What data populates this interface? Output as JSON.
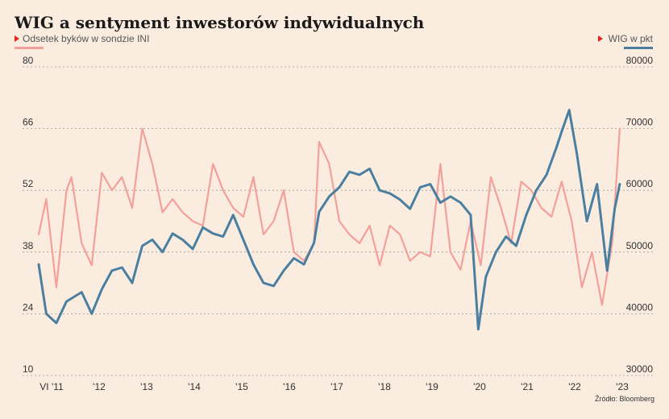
{
  "chart_data": {
    "type": "line",
    "title": "WIG a sentyment inwestorów indywidualnych",
    "legend_placement": "top-left and top-right",
    "grid": true,
    "x_ticks": [
      "VI '11",
      "'12",
      "'13",
      "'14",
      "'15",
      "'16",
      "'17",
      "'18",
      "'19",
      "'20",
      "'21",
      "'22",
      "'23"
    ],
    "x_range": [
      2011.45,
      2023.0
    ],
    "y_left": {
      "range": [
        10,
        80
      ],
      "ticks": [
        "80",
        "66",
        "52",
        "38",
        "24",
        "10"
      ]
    },
    "y_right": {
      "range": [
        30000,
        80000
      ],
      "ticks": [
        "80000",
        "70000",
        "60000",
        "50000",
        "40000",
        "30000"
      ]
    },
    "series": [
      {
        "name": "Odsetek byków w sondzie INI",
        "axis": "left",
        "color": "#f4a09a",
        "x": [
          2011.45,
          2011.6,
          2011.8,
          2012.0,
          2012.1,
          2012.3,
          2012.5,
          2012.7,
          2012.9,
          2013.1,
          2013.3,
          2013.5,
          2013.7,
          2013.9,
          2014.1,
          2014.3,
          2014.5,
          2014.7,
          2014.9,
          2015.1,
          2015.3,
          2015.5,
          2015.7,
          2015.9,
          2016.1,
          2016.3,
          2016.5,
          2016.7,
          2016.9,
          2017.0,
          2017.2,
          2017.4,
          2017.6,
          2017.8,
          2018.0,
          2018.2,
          2018.4,
          2018.6,
          2018.8,
          2019.0,
          2019.2,
          2019.4,
          2019.6,
          2019.8,
          2020.0,
          2020.2,
          2020.4,
          2020.6,
          2020.8,
          2021.0,
          2021.2,
          2021.4,
          2021.6,
          2021.8,
          2022.0,
          2022.2,
          2022.4,
          2022.6,
          2022.8,
          2022.95
        ],
        "values": [
          42,
          50,
          30,
          52,
          55,
          40,
          35,
          56,
          52,
          55,
          48,
          66,
          58,
          47,
          50,
          47,
          45,
          44,
          58,
          52,
          48,
          46,
          55,
          42,
          45,
          52,
          38,
          36,
          40,
          63,
          58,
          45,
          42,
          40,
          44,
          35,
          44,
          42,
          36,
          38,
          37,
          58,
          38,
          34,
          45,
          35,
          55,
          48,
          40,
          54,
          52,
          48,
          46,
          54,
          45,
          30,
          38,
          26,
          40,
          66
        ]
      },
      {
        "name": "WIG w pkt",
        "axis": "right",
        "color": "#4a7fa0",
        "x": [
          2011.45,
          2011.6,
          2011.8,
          2012.0,
          2012.3,
          2012.5,
          2012.7,
          2012.9,
          2013.1,
          2013.3,
          2013.5,
          2013.7,
          2013.9,
          2014.1,
          2014.3,
          2014.5,
          2014.7,
          2014.9,
          2015.1,
          2015.3,
          2015.5,
          2015.7,
          2015.9,
          2016.1,
          2016.3,
          2016.5,
          2016.7,
          2016.9,
          2017.0,
          2017.2,
          2017.4,
          2017.6,
          2017.8,
          2018.0,
          2018.2,
          2018.4,
          2018.6,
          2018.8,
          2019.0,
          2019.2,
          2019.4,
          2019.6,
          2019.8,
          2020.0,
          2020.15,
          2020.3,
          2020.5,
          2020.7,
          2020.9,
          2021.1,
          2021.3,
          2021.5,
          2021.7,
          2021.8,
          2021.95,
          2022.1,
          2022.3,
          2022.5,
          2022.7,
          2022.85,
          2022.95
        ],
        "values": [
          48000,
          40000,
          38500,
          42000,
          43500,
          40000,
          44000,
          47000,
          47500,
          45000,
          51000,
          52000,
          50000,
          53000,
          52000,
          50500,
          54000,
          53000,
          52500,
          56000,
          52000,
          48000,
          45000,
          44500,
          47000,
          49000,
          48000,
          51500,
          56500,
          59000,
          60500,
          63000,
          62500,
          63500,
          60000,
          59500,
          58500,
          57000,
          60500,
          61000,
          58000,
          59000,
          58000,
          56000,
          37500,
          46000,
          50000,
          52500,
          51000,
          56000,
          60000,
          62500,
          67000,
          69500,
          73000,
          66000,
          55000,
          61000,
          47000,
          57000,
          61000
        ]
      }
    ],
    "source": "Źródło: Bloomberg"
  }
}
